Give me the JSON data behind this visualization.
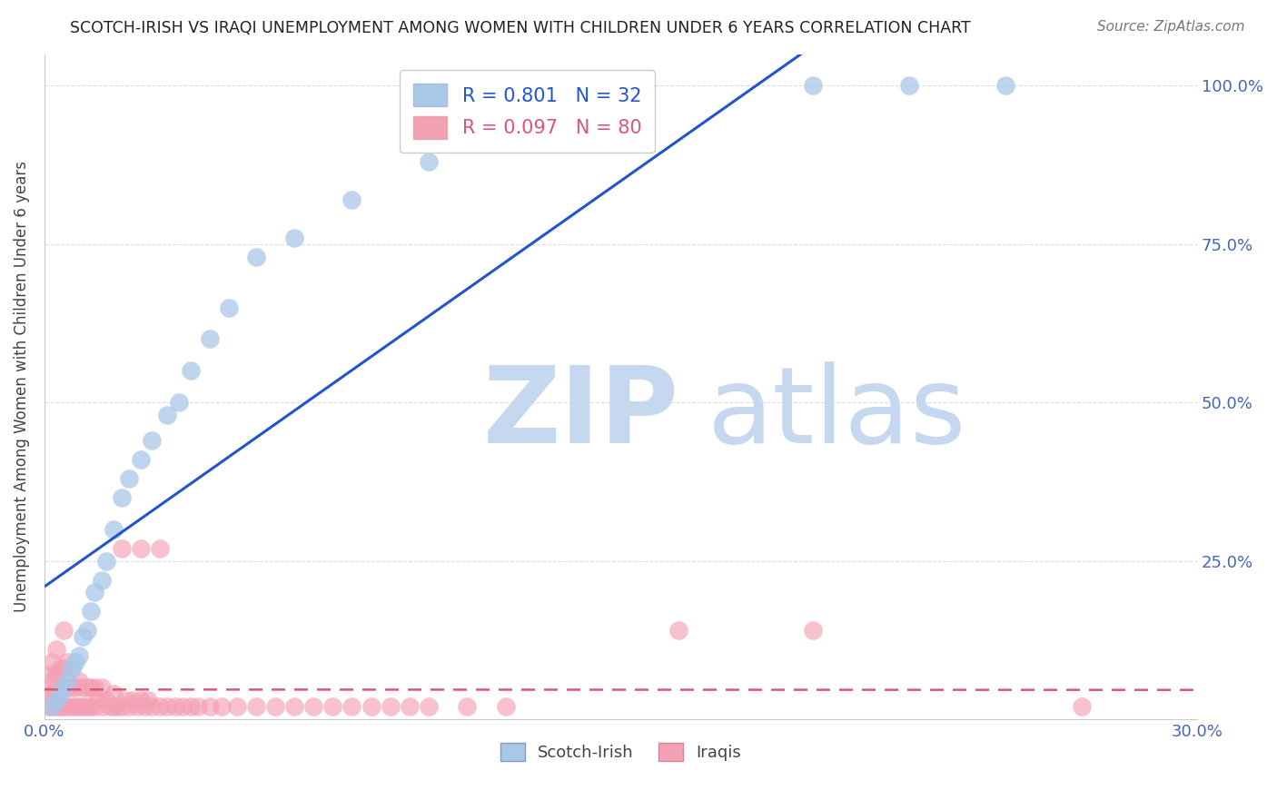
{
  "title": "SCOTCH-IRISH VS IRAQI UNEMPLOYMENT AMONG WOMEN WITH CHILDREN UNDER 6 YEARS CORRELATION CHART",
  "source": "Source: ZipAtlas.com",
  "ylabel": "Unemployment Among Women with Children Under 6 years",
  "xlim": [
    0.0,
    0.3
  ],
  "ylim": [
    0.0,
    1.05
  ],
  "xticks": [
    0.0,
    0.05,
    0.1,
    0.15,
    0.2,
    0.25,
    0.3
  ],
  "xticklabels": [
    "0.0%",
    "",
    "",
    "",
    "",
    "",
    "30.0%"
  ],
  "yticks": [
    0.0,
    0.25,
    0.5,
    0.75,
    1.0
  ],
  "yticklabels": [
    "",
    "25.0%",
    "50.0%",
    "75.0%",
    "100.0%"
  ],
  "scotch_irish_R": 0.801,
  "scotch_irish_N": 32,
  "iraqi_R": 0.097,
  "iraqi_N": 80,
  "scotch_irish_color": "#A8C8E8",
  "iraqi_color": "#F4A0B5",
  "regression_line_scotch_color": "#2255CC",
  "regression_line_iraqi_color": "#DD5577",
  "scotch_irish_x": [
    0.002,
    0.003,
    0.004,
    0.005,
    0.006,
    0.007,
    0.008,
    0.009,
    0.01,
    0.011,
    0.012,
    0.013,
    0.015,
    0.016,
    0.018,
    0.02,
    0.022,
    0.025,
    0.028,
    0.032,
    0.035,
    0.038,
    0.043,
    0.048,
    0.055,
    0.065,
    0.08,
    0.1,
    0.155,
    0.2,
    0.225,
    0.25
  ],
  "scotch_irish_y": [
    0.02,
    0.03,
    0.04,
    0.05,
    0.06,
    0.08,
    0.09,
    0.1,
    0.13,
    0.14,
    0.17,
    0.2,
    0.22,
    0.25,
    0.3,
    0.35,
    0.38,
    0.41,
    0.44,
    0.48,
    0.5,
    0.55,
    0.6,
    0.65,
    0.73,
    0.76,
    0.82,
    0.88,
    0.93,
    1.0,
    1.0,
    1.0
  ],
  "iraqi_x": [
    0.001,
    0.001,
    0.001,
    0.002,
    0.002,
    0.002,
    0.002,
    0.003,
    0.003,
    0.003,
    0.003,
    0.004,
    0.004,
    0.004,
    0.005,
    0.005,
    0.005,
    0.005,
    0.006,
    0.006,
    0.006,
    0.007,
    0.007,
    0.007,
    0.008,
    0.008,
    0.009,
    0.009,
    0.01,
    0.01,
    0.011,
    0.011,
    0.012,
    0.012,
    0.013,
    0.013,
    0.014,
    0.015,
    0.015,
    0.016,
    0.017,
    0.018,
    0.018,
    0.019,
    0.02,
    0.021,
    0.022,
    0.023,
    0.024,
    0.025,
    0.026,
    0.027,
    0.028,
    0.03,
    0.032,
    0.034,
    0.036,
    0.038,
    0.04,
    0.043,
    0.046,
    0.05,
    0.055,
    0.06,
    0.065,
    0.07,
    0.075,
    0.08,
    0.085,
    0.09,
    0.095,
    0.1,
    0.11,
    0.12,
    0.02,
    0.025,
    0.03,
    0.165,
    0.2,
    0.27
  ],
  "iraqi_y": [
    0.02,
    0.04,
    0.07,
    0.02,
    0.04,
    0.06,
    0.09,
    0.02,
    0.04,
    0.07,
    0.11,
    0.02,
    0.05,
    0.08,
    0.02,
    0.05,
    0.08,
    0.14,
    0.02,
    0.05,
    0.09,
    0.02,
    0.05,
    0.08,
    0.02,
    0.05,
    0.02,
    0.06,
    0.02,
    0.05,
    0.02,
    0.05,
    0.02,
    0.05,
    0.02,
    0.05,
    0.03,
    0.02,
    0.05,
    0.03,
    0.02,
    0.02,
    0.04,
    0.02,
    0.02,
    0.03,
    0.02,
    0.03,
    0.02,
    0.03,
    0.02,
    0.03,
    0.02,
    0.02,
    0.02,
    0.02,
    0.02,
    0.02,
    0.02,
    0.02,
    0.02,
    0.02,
    0.02,
    0.02,
    0.02,
    0.02,
    0.02,
    0.02,
    0.02,
    0.02,
    0.02,
    0.02,
    0.02,
    0.02,
    0.27,
    0.27,
    0.27,
    0.14,
    0.14,
    0.02
  ],
  "watermark_zip": "ZIP",
  "watermark_atlas": "atlas",
  "watermark_color": "#C5D8F0",
  "background_color": "#FFFFFF",
  "grid_color": "#DDDDDD",
  "tick_label_color": "#4466BB"
}
